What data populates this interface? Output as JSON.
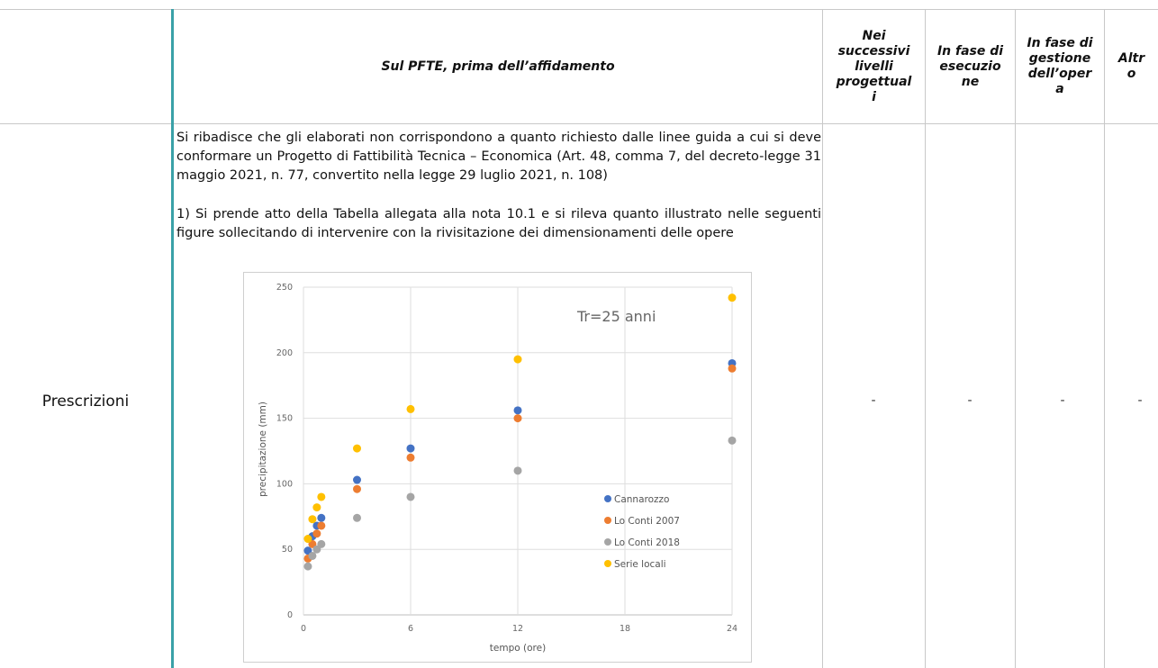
{
  "table": {
    "headers": {
      "pfte": "Sul PFTE, prima dell’affidamento",
      "successivi": [
        "Nei",
        "successivi",
        "livelli",
        "progettual",
        "i"
      ],
      "esecuzione": [
        "In fase di",
        "esecuzio",
        "ne"
      ],
      "gestione": [
        "In fase di",
        "gestione",
        "dell’oper",
        "a"
      ],
      "altro": [
        "Altr",
        "o"
      ]
    },
    "row_label": "Prescrizioni",
    "paragraph1": "Si ribadisce che gli elaborati non corrispondono a quanto richiesto dalle linee guida a cui si deve conformare un Progetto di Fattibilità Tecnica – Economica (Art. 48, comma 7, del decreto-legge 31 maggio 2021, n. 77, convertito nella legge 29 luglio 2021, n. 108)",
    "paragraph2": "1) Si prende atto della Tabella allegata alla nota 10.1 e si rileva quanto illustrato nelle seguenti figure sollecitando di intervenire con la rivisitazione dei dimensionamenti delle opere",
    "dashes": [
      "-",
      "-",
      "-",
      "-"
    ]
  },
  "chart_data": {
    "type": "scatter",
    "annotation": "Tr=25 anni",
    "xlabel": "tempo (ore)",
    "ylabel": "precipitazione (mm)",
    "xlim": [
      0,
      24
    ],
    "ylim": [
      0,
      250
    ],
    "xticks": [
      0,
      6,
      12,
      18,
      24
    ],
    "yticks": [
      0,
      50,
      100,
      150,
      200,
      250
    ],
    "grid": true,
    "legend_position": "bottom-right",
    "series": [
      {
        "name": "Cannarozzo",
        "color": "#4472c4",
        "x": [
          0.25,
          0.5,
          0.75,
          1,
          3,
          6,
          12,
          24
        ],
        "y": [
          49,
          60,
          68,
          74,
          103,
          127,
          156,
          192
        ]
      },
      {
        "name": "Lo Conti 2007",
        "color": "#ed7d31",
        "x": [
          0.25,
          0.5,
          0.75,
          1,
          3,
          6,
          12,
          24
        ],
        "y": [
          43,
          54,
          62,
          68,
          96,
          120,
          150,
          188
        ]
      },
      {
        "name": "Lo Conti 2018",
        "color": "#a5a5a5",
        "x": [
          0.25,
          0.5,
          0.75,
          1,
          3,
          6,
          12,
          24
        ],
        "y": [
          37,
          45,
          50,
          54,
          74,
          90,
          110,
          133
        ]
      },
      {
        "name": "Serie locali",
        "color": "#ffc000",
        "x": [
          0.25,
          0.5,
          0.75,
          1,
          3,
          6,
          12,
          24
        ],
        "y": [
          58,
          73,
          82,
          90,
          127,
          157,
          195,
          242
        ]
      }
    ]
  }
}
